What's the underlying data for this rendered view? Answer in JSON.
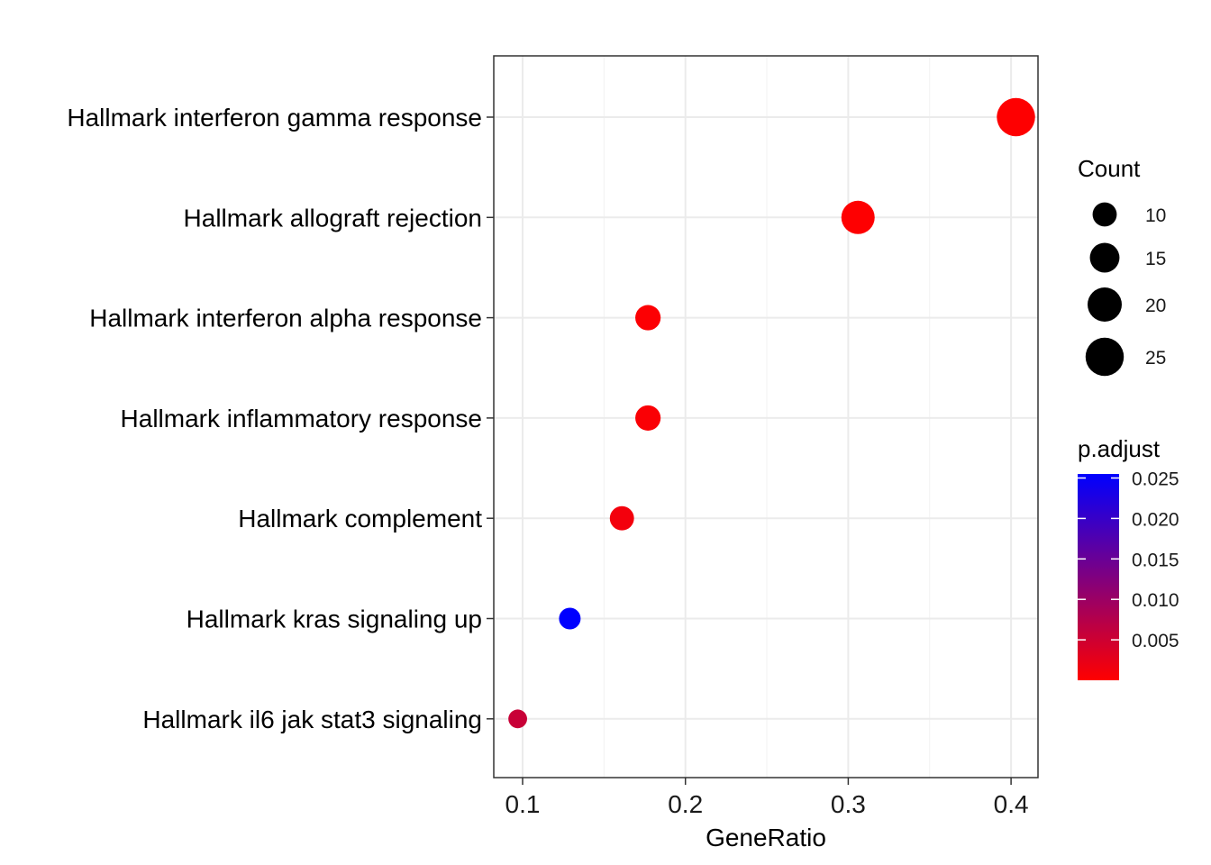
{
  "chart_data": {
    "type": "scatter",
    "xlabel": "GeneRatio",
    "ylabel": "",
    "xlim": [
      0.085,
      0.42
    ],
    "xticks": [
      0.1,
      0.2,
      0.3,
      0.4
    ],
    "xtick_labels": [
      "0.1",
      "0.2",
      "0.3",
      "0.4"
    ],
    "grid": true,
    "categories": [
      "Hallmark interferon gamma response",
      "Hallmark allograft rejection",
      "Hallmark interferon alpha response",
      "Hallmark inflammatory response",
      "Hallmark complement",
      "Hallmark kras signaling up",
      "Hallmark il6 jak stat3 signaling"
    ],
    "points": [
      {
        "category": "Hallmark interferon gamma response",
        "gene_ratio": 0.403,
        "count": 25,
        "p_adjust": 0.0001
      },
      {
        "category": "Hallmark allograft rejection",
        "gene_ratio": 0.306,
        "count": 19,
        "p_adjust": 0.0001
      },
      {
        "category": "Hallmark interferon alpha response",
        "gene_ratio": 0.177,
        "count": 11,
        "p_adjust": 0.0003
      },
      {
        "category": "Hallmark inflammatory response",
        "gene_ratio": 0.177,
        "count": 11,
        "p_adjust": 0.0005
      },
      {
        "category": "Hallmark complement",
        "gene_ratio": 0.161,
        "count": 10,
        "p_adjust": 0.0012
      },
      {
        "category": "Hallmark kras signaling up",
        "gene_ratio": 0.129,
        "count": 8,
        "p_adjust": 0.0255
      },
      {
        "category": "Hallmark il6 jak stat3 signaling",
        "gene_ratio": 0.097,
        "count": 6,
        "p_adjust": 0.0055
      }
    ],
    "size_legend": {
      "title": "Count",
      "values": [
        10,
        15,
        20,
        25
      ],
      "labels": [
        "10",
        "15",
        "20",
        "25"
      ]
    },
    "color_legend": {
      "title": "p.adjust",
      "range": [
        0.0,
        0.0255
      ],
      "ticks": [
        0.005,
        0.01,
        0.015,
        0.02,
        0.025
      ],
      "tick_labels": [
        "0.005",
        "0.010",
        "0.015",
        "0.020",
        "0.025"
      ],
      "low_color": "#ff0000",
      "high_color": "#0000ff"
    },
    "legend_position": "right"
  }
}
